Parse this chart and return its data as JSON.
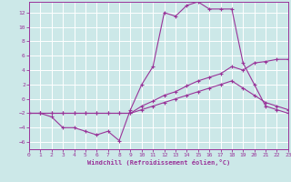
{
  "background_color": "#cce8e8",
  "grid_color": "#ffffff",
  "line_color": "#993399",
  "xlabel": "Windchill (Refroidissement éolien,°C)",
  "xlim": [
    0,
    23
  ],
  "ylim": [
    -7,
    13.5
  ],
  "yticks": [
    -6,
    -4,
    -2,
    0,
    2,
    4,
    6,
    8,
    10,
    12
  ],
  "xticks": [
    0,
    1,
    2,
    3,
    4,
    5,
    6,
    7,
    8,
    9,
    10,
    11,
    12,
    13,
    14,
    15,
    16,
    17,
    18,
    19,
    20,
    21,
    22,
    23
  ],
  "line1_x": [
    0,
    1,
    2,
    3,
    4,
    5,
    6,
    7,
    8,
    9,
    10,
    11,
    12,
    13,
    14,
    15,
    16,
    17,
    18,
    19,
    20,
    21,
    22,
    23
  ],
  "line1_y": [
    -2,
    -2,
    -2.5,
    -4,
    -4,
    -4.5,
    -5,
    -4.5,
    -5.8,
    -1.5,
    2,
    4.5,
    12,
    11.5,
    13,
    13.5,
    12.5,
    12.5,
    12.5,
    5,
    2,
    -1,
    -1.5,
    -2
  ],
  "line2_x": [
    0,
    1,
    2,
    3,
    4,
    5,
    6,
    7,
    8,
    9,
    10,
    11,
    12,
    13,
    14,
    15,
    16,
    17,
    18,
    19,
    20,
    21,
    22,
    23
  ],
  "line2_y": [
    -2,
    -2,
    -2,
    -2,
    -2,
    -2,
    -2,
    -2,
    -2,
    -2,
    -1,
    -0.3,
    0.5,
    1,
    1.8,
    2.5,
    3,
    3.5,
    4.5,
    4,
    5,
    5.2,
    5.5,
    5.5
  ],
  "line3_x": [
    0,
    1,
    2,
    3,
    4,
    5,
    6,
    7,
    8,
    9,
    10,
    11,
    12,
    13,
    14,
    15,
    16,
    17,
    18,
    19,
    20,
    21,
    22,
    23
  ],
  "line3_y": [
    -2,
    -2,
    -2,
    -2,
    -2,
    -2,
    -2,
    -2,
    -2,
    -2,
    -1.5,
    -1,
    -0.5,
    0,
    0.5,
    1,
    1.5,
    2,
    2.5,
    1.5,
    0.5,
    -0.5,
    -1,
    -1.5
  ]
}
